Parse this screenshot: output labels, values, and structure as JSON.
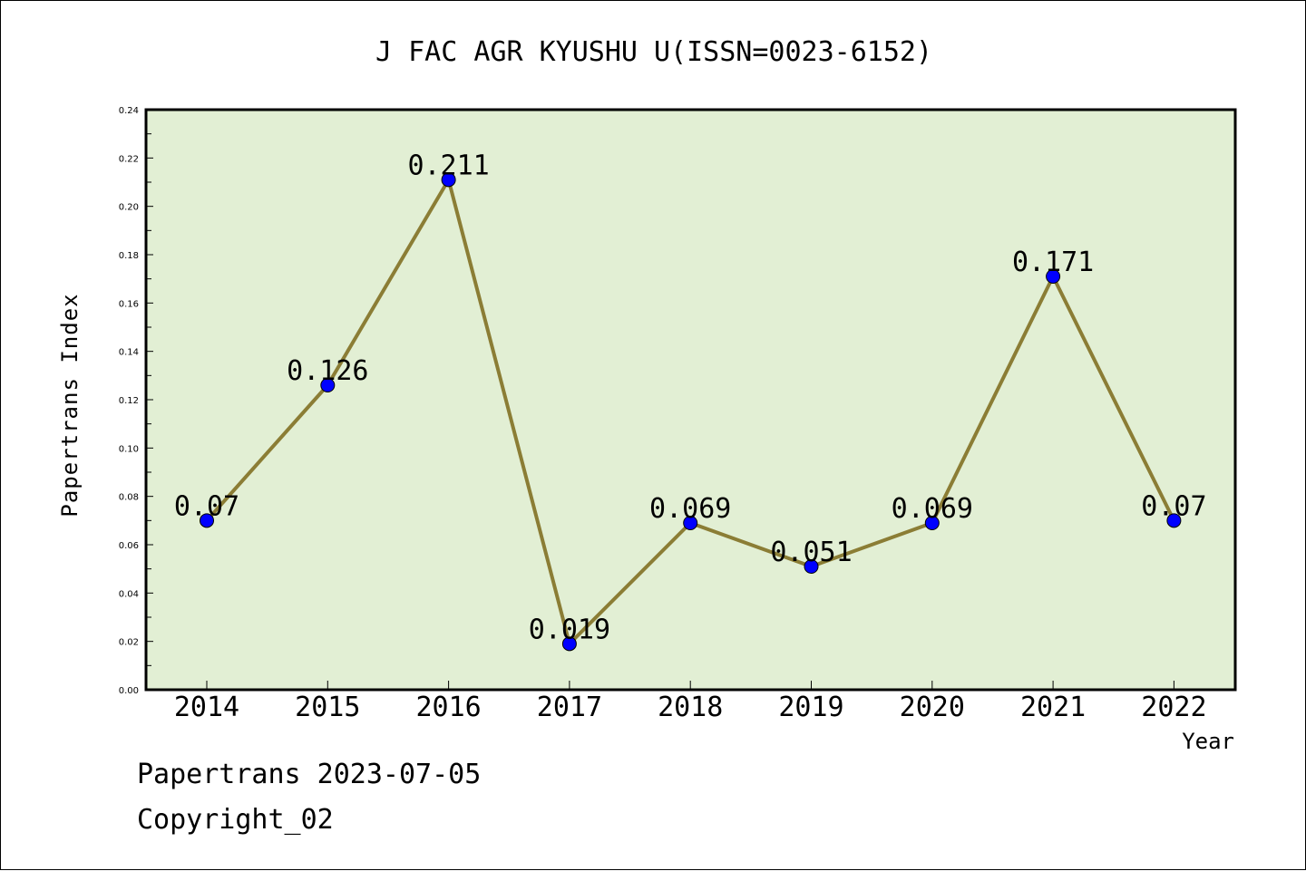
{
  "chart_data": {
    "type": "line",
    "title": "J FAC AGR KYUSHU U(ISSN=0023-6152)",
    "xlabel": "Year",
    "ylabel": "Papertrans Index",
    "categories": [
      "2014",
      "2015",
      "2016",
      "2017",
      "2018",
      "2019",
      "2020",
      "2021",
      "2022"
    ],
    "values": [
      0.07,
      0.126,
      0.211,
      0.019,
      0.069,
      0.051,
      0.069,
      0.171,
      0.07
    ],
    "data_labels": [
      "0.07",
      "0.126",
      "0.211",
      "0.019",
      "0.069",
      "0.051",
      "0.069",
      "0.171",
      "0.07"
    ],
    "ylim": [
      0,
      0.24
    ],
    "yticks": [
      "0.00",
      "0.02",
      "0.04",
      "0.06",
      "0.08",
      "0.10",
      "0.12",
      "0.14",
      "0.16",
      "0.18",
      "0.20",
      "0.22",
      "0.24"
    ],
    "grid": false,
    "legend": "none",
    "colors": {
      "plot_background": "#e2efd4",
      "line": "#8b7d35",
      "marker": "#0000ff"
    }
  },
  "footer": {
    "line1": "Papertrans 2023-07-05",
    "line2": "Copyright_02"
  }
}
